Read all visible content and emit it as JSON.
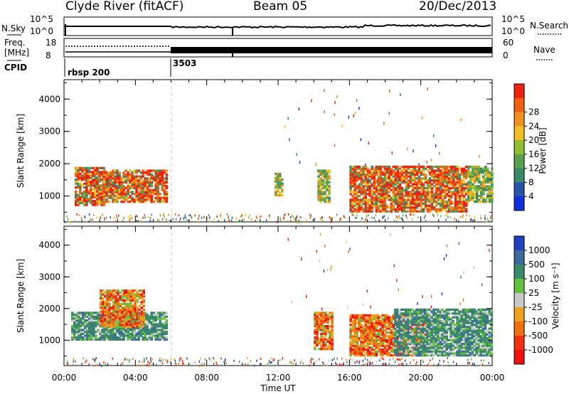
{
  "header": {
    "title": "Clyde River (fitACF)",
    "beam": "Beam 05",
    "date": "20/Dec/2013"
  },
  "top_panels": {
    "nsky_label": "N.Sky",
    "nsearch_label": "N.Search",
    "freq_label": "Freq.",
    "freq_unit": "[MHz]",
    "nave_label": "Nave",
    "cpid_label": "CPID",
    "noise_ticks": [
      "10^5",
      "10^0"
    ],
    "freq_ticks": [
      "18",
      "8"
    ],
    "nave_ticks": [
      "60",
      "0"
    ],
    "cpid_segments": [
      {
        "start_hour": 0,
        "label": "rbsp 200"
      },
      {
        "start_hour": 6,
        "label": "3503"
      }
    ]
  },
  "chart_data": [
    {
      "type": "heatmap",
      "title": "",
      "xlabel": "",
      "ylabel": "Slant Range [km]",
      "xlim": [
        0,
        24
      ],
      "ylim": [
        200,
        4600
      ],
      "y_ticks": [
        "1000",
        "2000",
        "3000",
        "4000"
      ],
      "colorbar": {
        "label": "Power [dB]",
        "ticks": [
          "4",
          "8",
          "12",
          "16",
          "20",
          "24",
          "28"
        ],
        "colors": [
          "#1030e0",
          "#2a52a8",
          "#3a8a6a",
          "#5aa050",
          "#90c030",
          "#f0c020",
          "#f09020",
          "#f06010",
          "#f02010"
        ]
      },
      "regions": [
        {
          "t0": 0.6,
          "t1": 2.2,
          "r0": 700,
          "r1": 1900,
          "level": "high"
        },
        {
          "t0": 2.2,
          "t1": 5.8,
          "r0": 800,
          "r1": 1800,
          "level": "high"
        },
        {
          "t0": 11.8,
          "t1": 12.2,
          "r0": 1000,
          "r1": 1700,
          "level": "mid"
        },
        {
          "t0": 14.2,
          "t1": 14.8,
          "r0": 800,
          "r1": 1800,
          "level": "mid"
        },
        {
          "t0": 16.0,
          "t1": 22.6,
          "r0": 500,
          "r1": 1900,
          "level": "high"
        },
        {
          "t0": 22.6,
          "t1": 24.0,
          "r0": 800,
          "r1": 1900,
          "level": "mid"
        }
      ]
    },
    {
      "type": "heatmap",
      "title": "",
      "xlabel": "Time UT",
      "ylabel": "Slant Range [km]",
      "xlim": [
        0,
        24
      ],
      "ylim": [
        200,
        4600
      ],
      "x_ticks": [
        "00:00",
        "04:00",
        "08:00",
        "12:00",
        "16:00",
        "20:00",
        "00:00"
      ],
      "y_ticks": [
        "1000",
        "2000",
        "3000",
        "4000"
      ],
      "colorbar": {
        "label": "Velocity [m s⁻¹]",
        "ticks": [
          "1000",
          "500",
          "100",
          "25",
          "-25",
          "-100",
          "-500",
          "-1000"
        ],
        "colors": [
          "#2040c0",
          "#3a6aa0",
          "#3a8a6a",
          "#66c040",
          "#c8c8c8",
          "#f0a020",
          "#f07010",
          "#f03010",
          "#f01010"
        ]
      },
      "regions": [
        {
          "t0": 0.4,
          "t1": 5.8,
          "r0": 1000,
          "r1": 1900,
          "level": "toward"
        },
        {
          "t0": 2.0,
          "t1": 4.5,
          "r0": 1400,
          "r1": 2600,
          "level": "away"
        },
        {
          "t0": 14.0,
          "t1": 15.0,
          "r0": 700,
          "r1": 1900,
          "level": "away"
        },
        {
          "t0": 16.0,
          "t1": 20.5,
          "r0": 500,
          "r1": 1800,
          "level": "away"
        },
        {
          "t0": 18.5,
          "t1": 24.0,
          "r0": 500,
          "r1": 2000,
          "level": "toward"
        }
      ]
    }
  ]
}
